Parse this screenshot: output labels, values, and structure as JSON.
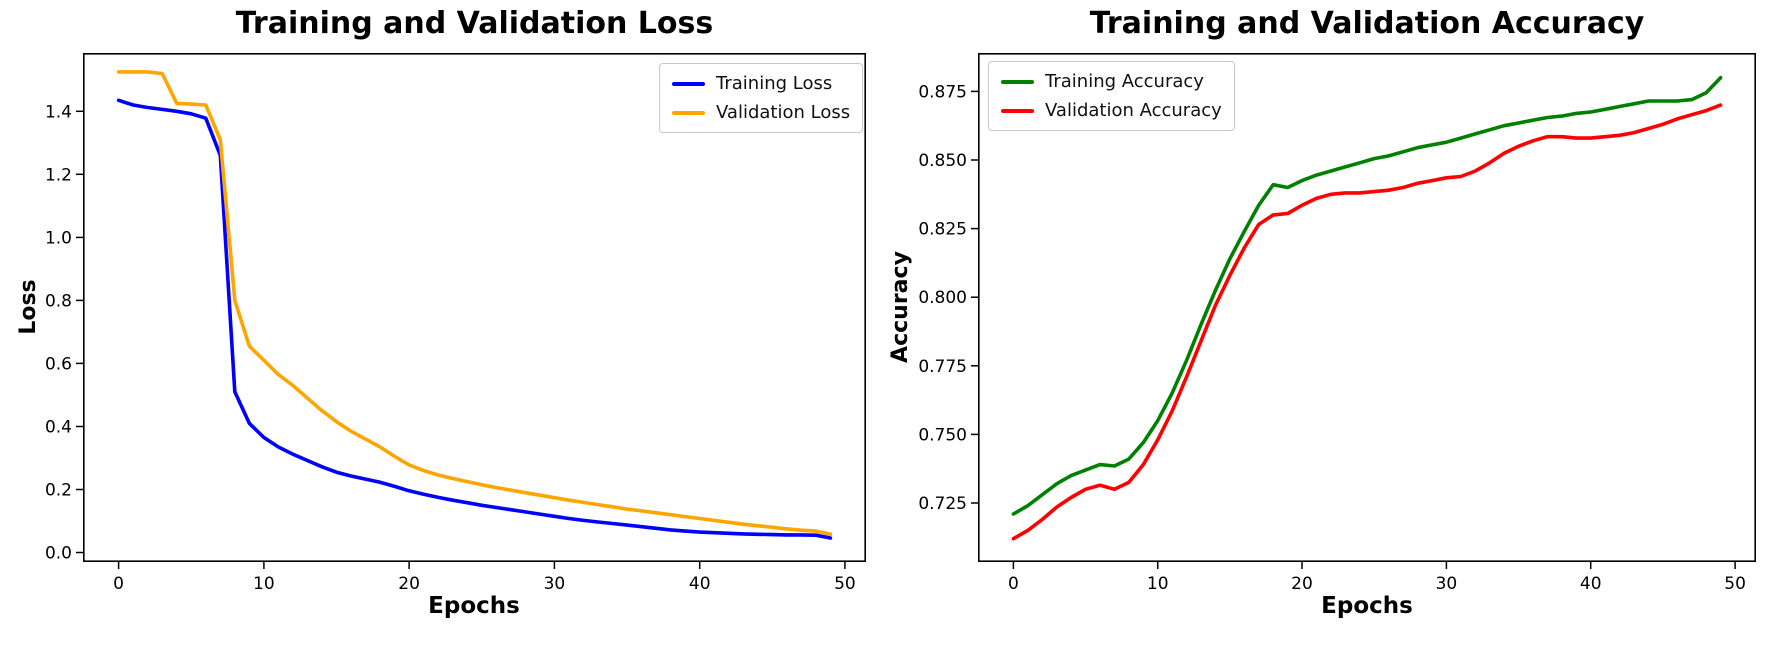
{
  "figure": {
    "background": "#ffffff",
    "description": "Two side-by-side line charts of model training history over 50 epochs"
  },
  "chart_data": [
    {
      "type": "line",
      "title": "Training and Validation Loss",
      "xlabel": "Epochs",
      "ylabel": "Loss",
      "grid": false,
      "legend_position": "top-right",
      "xlim": [
        -2.45,
        51.45
      ],
      "ylim": [
        -0.03,
        1.585
      ],
      "xticks": [
        0,
        10,
        20,
        30,
        40,
        50
      ],
      "xtick_labels": [
        "0",
        "10",
        "20",
        "30",
        "40",
        "50"
      ],
      "yticks": [
        0.0,
        0.2,
        0.4,
        0.6,
        0.8,
        1.0,
        1.2,
        1.4
      ],
      "ytick_labels": [
        "0.0",
        "0.2",
        "0.4",
        "0.6",
        "0.8",
        "1.0",
        "1.2",
        "1.4"
      ],
      "x": [
        0,
        1,
        2,
        3,
        4,
        5,
        6,
        7,
        8,
        9,
        10,
        11,
        12,
        13,
        14,
        15,
        16,
        17,
        18,
        19,
        20,
        21,
        22,
        23,
        24,
        25,
        26,
        27,
        28,
        29,
        30,
        31,
        32,
        33,
        34,
        35,
        36,
        37,
        38,
        39,
        40,
        41,
        42,
        43,
        44,
        45,
        46,
        47,
        48,
        49
      ],
      "series": [
        {
          "name": "Training Loss",
          "color": "#0000ff",
          "values": [
            1.435,
            1.42,
            1.412,
            1.406,
            1.4,
            1.392,
            1.378,
            1.26,
            0.51,
            0.41,
            0.365,
            0.335,
            0.312,
            0.292,
            0.272,
            0.255,
            0.243,
            0.233,
            0.223,
            0.21,
            0.196,
            0.185,
            0.175,
            0.166,
            0.158,
            0.15,
            0.143,
            0.136,
            0.129,
            0.122,
            0.115,
            0.108,
            0.102,
            0.097,
            0.092,
            0.087,
            0.082,
            0.077,
            0.072,
            0.068,
            0.065,
            0.063,
            0.061,
            0.059,
            0.058,
            0.057,
            0.056,
            0.056,
            0.055,
            0.046
          ]
        },
        {
          "name": "Validation Loss",
          "color": "#ffa500",
          "values": [
            1.525,
            1.525,
            1.525,
            1.52,
            1.425,
            1.423,
            1.42,
            1.31,
            0.8,
            0.655,
            0.61,
            0.565,
            0.53,
            0.49,
            0.45,
            0.415,
            0.385,
            0.36,
            0.335,
            0.305,
            0.278,
            0.26,
            0.246,
            0.235,
            0.225,
            0.215,
            0.206,
            0.198,
            0.19,
            0.182,
            0.174,
            0.166,
            0.159,
            0.152,
            0.145,
            0.138,
            0.132,
            0.126,
            0.12,
            0.114,
            0.108,
            0.102,
            0.096,
            0.09,
            0.085,
            0.08,
            0.075,
            0.071,
            0.068,
            0.058
          ]
        }
      ]
    },
    {
      "type": "line",
      "title": "Training and Validation Accuracy",
      "xlabel": "Epochs",
      "ylabel": "Accuracy",
      "grid": false,
      "legend_position": "top-left",
      "xlim": [
        -2.45,
        51.45
      ],
      "ylim": [
        0.7035,
        0.889
      ],
      "xticks": [
        0,
        10,
        20,
        30,
        40,
        50
      ],
      "xtick_labels": [
        "0",
        "10",
        "20",
        "30",
        "40",
        "50"
      ],
      "yticks": [
        0.725,
        0.75,
        0.775,
        0.8,
        0.825,
        0.85,
        0.875
      ],
      "ytick_labels": [
        "0.725",
        "0.750",
        "0.775",
        "0.800",
        "0.825",
        "0.850",
        "0.875"
      ],
      "x": [
        0,
        1,
        2,
        3,
        4,
        5,
        6,
        7,
        8,
        9,
        10,
        11,
        12,
        13,
        14,
        15,
        16,
        17,
        18,
        19,
        20,
        21,
        22,
        23,
        24,
        25,
        26,
        27,
        28,
        29,
        30,
        31,
        32,
        33,
        34,
        35,
        36,
        37,
        38,
        39,
        40,
        41,
        42,
        43,
        44,
        45,
        46,
        47,
        48,
        49
      ],
      "series": [
        {
          "name": "Training Accuracy",
          "color": "#008000",
          "values": [
            0.721,
            0.724,
            0.728,
            0.732,
            0.735,
            0.737,
            0.739,
            0.7385,
            0.741,
            0.747,
            0.755,
            0.765,
            0.777,
            0.79,
            0.8025,
            0.814,
            0.824,
            0.8335,
            0.841,
            0.84,
            0.8425,
            0.8445,
            0.846,
            0.8475,
            0.849,
            0.8505,
            0.8515,
            0.853,
            0.8545,
            0.8555,
            0.8565,
            0.858,
            0.8595,
            0.861,
            0.8625,
            0.8635,
            0.8645,
            0.8655,
            0.866,
            0.867,
            0.8675,
            0.8685,
            0.8695,
            0.8705,
            0.8715,
            0.8715,
            0.8715,
            0.872,
            0.8745,
            0.88
          ]
        },
        {
          "name": "Validation Accuracy",
          "color": "#ff0000",
          "values": [
            0.712,
            0.715,
            0.719,
            0.7235,
            0.727,
            0.73,
            0.7315,
            0.73,
            0.7325,
            0.739,
            0.748,
            0.7585,
            0.771,
            0.784,
            0.797,
            0.808,
            0.818,
            0.8265,
            0.83,
            0.8305,
            0.8335,
            0.836,
            0.8375,
            0.838,
            0.838,
            0.8385,
            0.839,
            0.84,
            0.8415,
            0.8425,
            0.8435,
            0.844,
            0.846,
            0.849,
            0.8525,
            0.855,
            0.857,
            0.8585,
            0.8585,
            0.858,
            0.858,
            0.8585,
            0.859,
            0.86,
            0.8615,
            0.863,
            0.865,
            0.8665,
            0.868,
            0.87
          ]
        }
      ]
    }
  ]
}
